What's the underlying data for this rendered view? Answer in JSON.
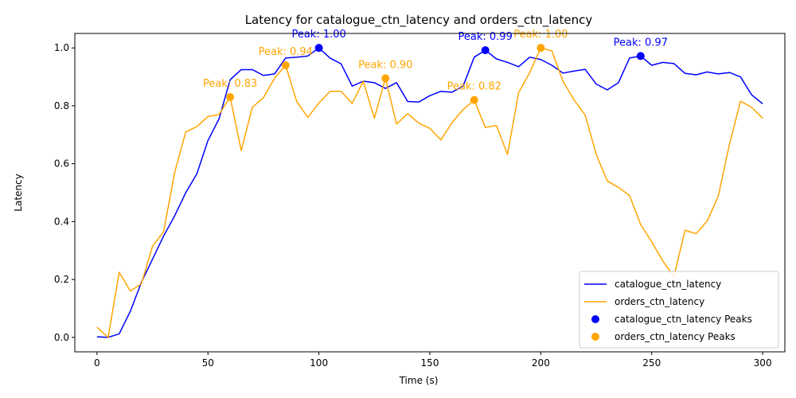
{
  "chart_data": {
    "type": "line",
    "title": "Latency for catalogue_ctn_latency and orders_ctn_latency",
    "xlabel": "Time (s)",
    "ylabel": "Latency",
    "xlim": [
      -10,
      310
    ],
    "ylim": [
      -0.05,
      1.05
    ],
    "x_ticks": [
      0,
      50,
      100,
      150,
      200,
      250,
      300
    ],
    "y_ticks": [
      0.0,
      0.2,
      0.4,
      0.6,
      0.8,
      1.0
    ],
    "x_tick_labels": [
      "0",
      "50",
      "100",
      "150",
      "200",
      "250",
      "300"
    ],
    "y_tick_labels": [
      "0.0",
      "0.2",
      "0.4",
      "0.6",
      "0.8",
      "1.0"
    ],
    "grid": false,
    "legend_position": "bottom-right",
    "x": [
      0,
      5,
      10,
      15,
      20,
      25,
      30,
      35,
      40,
      45,
      50,
      55,
      60,
      65,
      70,
      75,
      80,
      85,
      90,
      95,
      100,
      105,
      110,
      115,
      120,
      125,
      130,
      135,
      140,
      145,
      150,
      155,
      160,
      165,
      170,
      175,
      180,
      185,
      190,
      195,
      200,
      205,
      210,
      215,
      220,
      225,
      230,
      235,
      240,
      245,
      250,
      255,
      260,
      265,
      270,
      275,
      280,
      285,
      290,
      295,
      300
    ],
    "series": [
      {
        "name": "catalogue_ctn_latency",
        "color": "#0000ff",
        "values": [
          0.002,
          0.0,
          0.012,
          0.09,
          0.19,
          0.27,
          0.35,
          0.42,
          0.5,
          0.565,
          0.68,
          0.755,
          0.89,
          0.925,
          0.925,
          0.905,
          0.91,
          0.965,
          0.968,
          0.972,
          1.0,
          0.965,
          0.945,
          0.868,
          0.885,
          0.88,
          0.86,
          0.88,
          0.815,
          0.813,
          0.835,
          0.85,
          0.847,
          0.868,
          0.968,
          0.992,
          0.962,
          0.95,
          0.935,
          0.968,
          0.96,
          0.94,
          0.913,
          0.92,
          0.926,
          0.875,
          0.855,
          0.88,
          0.965,
          0.972,
          0.94,
          0.95,
          0.946,
          0.912,
          0.907,
          0.917,
          0.91,
          0.915,
          0.9,
          0.838,
          0.807
        ]
      },
      {
        "name": "orders_ctn_latency",
        "color": "#ffa500",
        "values": [
          0.035,
          0.0,
          0.225,
          0.16,
          0.185,
          0.315,
          0.365,
          0.57,
          0.71,
          0.728,
          0.763,
          0.77,
          0.83,
          0.645,
          0.795,
          0.828,
          0.895,
          0.94,
          0.815,
          0.76,
          0.81,
          0.85,
          0.85,
          0.808,
          0.885,
          0.757,
          0.895,
          0.737,
          0.773,
          0.74,
          0.722,
          0.682,
          0.742,
          0.787,
          0.82,
          0.725,
          0.732,
          0.632,
          0.845,
          0.915,
          1.0,
          0.99,
          0.885,
          0.82,
          0.768,
          0.632,
          0.54,
          0.518,
          0.49,
          0.39,
          0.33,
          0.264,
          0.21,
          0.37,
          0.358,
          0.402,
          0.488,
          0.666,
          0.816,
          0.795,
          0.757
        ]
      }
    ],
    "peaks": [
      {
        "series": "catalogue_ctn_latency",
        "color": "#0000ff",
        "x": 100,
        "y": 1.0,
        "label": "Peak: 1.00"
      },
      {
        "series": "catalogue_ctn_latency",
        "color": "#0000ff",
        "x": 175,
        "y": 0.992,
        "label": "Peak: 0.99"
      },
      {
        "series": "catalogue_ctn_latency",
        "color": "#0000ff",
        "x": 245,
        "y": 0.972,
        "label": "Peak: 0.97"
      },
      {
        "series": "orders_ctn_latency",
        "color": "#ffa500",
        "x": 60,
        "y": 0.83,
        "label": "Peak: 0.83"
      },
      {
        "series": "orders_ctn_latency",
        "color": "#ffa500",
        "x": 85,
        "y": 0.94,
        "label": "Peak: 0.94"
      },
      {
        "series": "orders_ctn_latency",
        "color": "#ffa500",
        "x": 130,
        "y": 0.895,
        "label": "Peak: 0.90"
      },
      {
        "series": "orders_ctn_latency",
        "color": "#ffa500",
        "x": 170,
        "y": 0.82,
        "label": "Peak: 0.82"
      },
      {
        "series": "orders_ctn_latency",
        "color": "#ffa500",
        "x": 200,
        "y": 1.0,
        "label": "Peak: 1.00"
      }
    ],
    "legend": [
      {
        "label": "catalogue_ctn_latency",
        "kind": "line",
        "color": "#0000ff"
      },
      {
        "label": "orders_ctn_latency",
        "kind": "line",
        "color": "#ffa500"
      },
      {
        "label": "catalogue_ctn_latency Peaks",
        "kind": "marker",
        "color": "#0000ff"
      },
      {
        "label": "orders_ctn_latency Peaks",
        "kind": "marker",
        "color": "#ffa500"
      }
    ]
  }
}
